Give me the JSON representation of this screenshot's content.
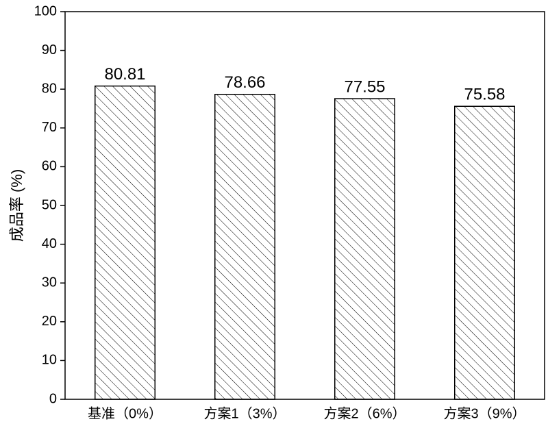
{
  "chart_data": {
    "type": "bar",
    "categories": [
      "基准（0%）",
      "方案1（3%）",
      "方案2（6%）",
      "方案3（9%）"
    ],
    "values": [
      80.81,
      78.66,
      77.55,
      75.58
    ],
    "ylabel": "成品率 (%)",
    "ylim": [
      0,
      100
    ],
    "yticks": [
      0,
      10,
      20,
      30,
      40,
      50,
      60,
      70,
      80,
      90,
      100
    ],
    "color": "#000000"
  }
}
